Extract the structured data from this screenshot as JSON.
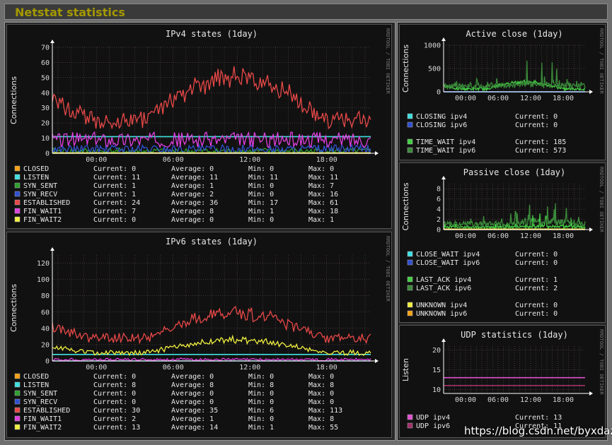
{
  "page": {
    "title": "Netstat statistics",
    "watermark": "https://blog.csdn.net/byxdaz"
  },
  "colors": {
    "closed": "#f5a214",
    "listen": "#40e0e0",
    "syn_sent": "#2ea02e",
    "syn_recv": "#3050d0",
    "established": "#e84848",
    "fin_wait1": "#e040e0",
    "fin_wait2": "#f0f040",
    "light_green": "#44d044",
    "dark_green": "#3a8a3a",
    "udp4": "#e050d0",
    "udp6": "#a0306a"
  },
  "watermark_credit": "RRDTOOL / TOBI OETIKER",
  "chart_data": [
    {
      "type": "line",
      "title": "IPv4 states  (1day)",
      "ylabel": "Connections",
      "x_ticks": [
        "00:00",
        "06:00",
        "12:00",
        "18:00"
      ],
      "ylim": [
        0,
        70
      ],
      "y_ticks": [
        "0",
        "10",
        "20",
        "30",
        "40",
        "50",
        "60",
        "70"
      ],
      "series": [
        {
          "name": "CLOSED",
          "color": "#f5a214",
          "current": "0",
          "average": "0",
          "min": "0",
          "max": "0",
          "profile": "flat",
          "base": 0,
          "amp": 0
        },
        {
          "name": "LISTEN",
          "color": "#40e0e0",
          "current": "11",
          "average": "11",
          "min": "11",
          "max": "11",
          "profile": "flat",
          "base": 11,
          "amp": 0
        },
        {
          "name": "SYN_SENT",
          "color": "#2ea02e",
          "current": "1",
          "average": "1",
          "min": "0",
          "max": "7",
          "profile": "noise",
          "base": 1,
          "amp": 2
        },
        {
          "name": "SYN_RECV",
          "color": "#3050d0",
          "current": "1",
          "average": "2",
          "min": "0",
          "max": "16",
          "profile": "noise",
          "base": 2,
          "amp": 3
        },
        {
          "name": "ESTABLISHED",
          "color": "#e84848",
          "current": "24",
          "average": "36",
          "min": "17",
          "max": "61",
          "profile": "day",
          "base": 22,
          "amp": 33
        },
        {
          "name": "FIN_WAIT1",
          "color": "#e040e0",
          "current": "7",
          "average": "8",
          "min": "1",
          "max": "18",
          "profile": "noise",
          "base": 8,
          "amp": 5
        },
        {
          "name": "FIN_WAIT2",
          "color": "#f0f040",
          "current": "0",
          "average": "0",
          "min": "0",
          "max": "1",
          "profile": "flat",
          "base": 0.3,
          "amp": 0
        }
      ]
    },
    {
      "type": "line",
      "title": "IPv6 states  (1day)",
      "ylabel": "Connections",
      "x_ticks": [
        "00:00",
        "06:00",
        "12:00",
        "18:00"
      ],
      "ylim": [
        0,
        130
      ],
      "y_ticks": [
        "0",
        "20",
        "40",
        "60",
        "80",
        "100",
        "120"
      ],
      "series": [
        {
          "name": "CLOSED",
          "color": "#f5a214",
          "current": "0",
          "average": "0",
          "min": "0",
          "max": "0",
          "profile": "flat",
          "base": 0,
          "amp": 0
        },
        {
          "name": "LISTEN",
          "color": "#40e0e0",
          "current": "8",
          "average": "8",
          "min": "8",
          "max": "8",
          "profile": "flat",
          "base": 8,
          "amp": 0
        },
        {
          "name": "SYN_SENT",
          "color": "#2ea02e",
          "current": "0",
          "average": "0",
          "min": "0",
          "max": "0",
          "profile": "flat",
          "base": 0,
          "amp": 0
        },
        {
          "name": "SYN_RECV",
          "color": "#3050d0",
          "current": "0",
          "average": "0",
          "min": "0",
          "max": "0",
          "profile": "flat",
          "base": 0,
          "amp": 0
        },
        {
          "name": "ESTABLISHED",
          "color": "#e84848",
          "current": "30",
          "average": "35",
          "min": "6",
          "max": "113",
          "profile": "day",
          "base": 28,
          "amp": 35
        },
        {
          "name": "FIN_WAIT1",
          "color": "#e040e0",
          "current": "2",
          "average": "1",
          "min": "0",
          "max": "8",
          "profile": "noise",
          "base": 1.5,
          "amp": 1.5
        },
        {
          "name": "FIN_WAIT2",
          "color": "#f0f040",
          "current": "13",
          "average": "14",
          "min": "1",
          "max": "55",
          "profile": "day",
          "base": 10,
          "amp": 18
        }
      ]
    },
    {
      "type": "line",
      "title": "Active close  (1day)",
      "ylabel": "Connections",
      "x_ticks": [
        "00:00",
        "06:00",
        "12:00",
        "18:00"
      ],
      "ylim": [
        0,
        1000
      ],
      "y_ticks": [
        "0",
        "500",
        "1000"
      ],
      "series": [
        {
          "name": "CLOSING ipv4",
          "color": "#40e0e0",
          "current": "0",
          "profile": "flat",
          "base": 0,
          "amp": 0
        },
        {
          "name": "CLOSING ipv6",
          "color": "#3050d0",
          "current": "0",
          "profile": "flat",
          "base": 2,
          "amp": 0
        },
        {
          "name": "TIME_WAIT ipv4",
          "color": "#44d044",
          "current": "185",
          "profile": "day",
          "base": 60,
          "amp": 170
        },
        {
          "name": "TIME_WAIT ipv6",
          "color": "#3a8a3a",
          "current": "573",
          "profile": "spiky",
          "base": 120,
          "amp": 550
        }
      ]
    },
    {
      "type": "line",
      "title": "Passive close  (1day)",
      "ylabel": "Connections",
      "x_ticks": [
        "00:00",
        "06:00",
        "12:00",
        "18:00"
      ],
      "ylim": [
        0,
        9
      ],
      "y_ticks": [
        "0",
        "2",
        "4",
        "6",
        "8"
      ],
      "series": [
        {
          "name": "CLOSE_WAIT ipv4",
          "color": "#40e0e0",
          "current": "0",
          "profile": "flat",
          "base": 0,
          "amp": 0
        },
        {
          "name": "CLOSE_WAIT ipv6",
          "color": "#3050d0",
          "current": "0",
          "profile": "flat",
          "base": 0,
          "amp": 0
        },
        {
          "name": "LAST_ACK ipv4",
          "color": "#44d044",
          "current": "1",
          "profile": "spiky",
          "base": 0.4,
          "amp": 2.5
        },
        {
          "name": "LAST_ACK ipv6",
          "color": "#3a8a3a",
          "current": "2",
          "profile": "spiky",
          "base": 1,
          "amp": 5
        },
        {
          "name": "UNKNOWN ipv4",
          "color": "#f0f040",
          "current": "0",
          "profile": "flat",
          "base": 0.1,
          "amp": 0
        },
        {
          "name": "UNKNOWN ipv6",
          "color": "#f5a214",
          "current": "0",
          "profile": "flat",
          "base": 0,
          "amp": 0
        }
      ]
    },
    {
      "type": "line",
      "title": "UDP statistics  (1day)",
      "ylabel": "Listen",
      "x_ticks": [
        "00:00",
        "06:00",
        "12:00",
        "18:00"
      ],
      "ylim": [
        9,
        21
      ],
      "y_ticks": [
        "10",
        "15",
        "20"
      ],
      "series": [
        {
          "name": "UDP ipv4",
          "color": "#e050d0",
          "current": "13",
          "profile": "flat",
          "base": 13,
          "amp": 0
        },
        {
          "name": "UDP ipv6",
          "color": "#a0306a",
          "current": "11",
          "profile": "flat",
          "base": 11,
          "amp": 0
        }
      ]
    }
  ]
}
